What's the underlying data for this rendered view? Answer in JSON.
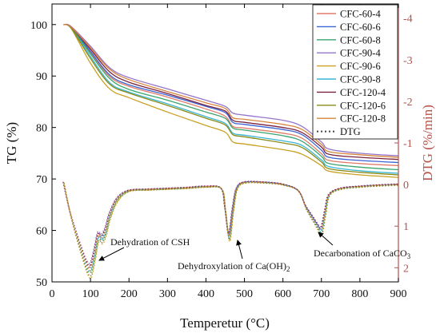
{
  "chart_data": {
    "type": "line",
    "xlabel": "Temperetur (°C)",
    "ylabel_left": "TG (%)",
    "ylabel_right": "DTG (%/min)",
    "xlim": [
      0,
      900
    ],
    "ylim_left": [
      50,
      104
    ],
    "ylim_right": [
      2.34,
      -4.34
    ],
    "right_axis_reversed": true,
    "x_ticks": [
      0,
      100,
      200,
      300,
      400,
      500,
      600,
      700,
      800,
      900
    ],
    "y_left_ticks": [
      50,
      60,
      70,
      80,
      90,
      100
    ],
    "y_right_ticks": [
      2,
      1,
      0,
      -1,
      -2,
      -3,
      -4
    ],
    "right_axis_color": "#b5524a",
    "grid": false,
    "legend_position": "top-right",
    "series": [
      {
        "name": "CFC-60-4",
        "color": "#e07b6a",
        "axis": "left",
        "x": [
          30,
          50,
          100,
          150,
          200,
          300,
          400,
          450,
          470,
          500,
          600,
          650,
          700,
          720,
          800,
          900
        ],
        "y": [
          100,
          99.5,
          94.6,
          89.9,
          88.0,
          85.9,
          83.6,
          82.2,
          80.2,
          79.9,
          78.9,
          77.9,
          74.9,
          73.6,
          73.0,
          72.6
        ]
      },
      {
        "name": "CFC-60-6",
        "color": "#3b63d6",
        "axis": "left",
        "x": [
          30,
          50,
          100,
          150,
          200,
          300,
          400,
          450,
          470,
          500,
          600,
          650,
          700,
          720,
          800,
          900
        ],
        "y": [
          100,
          99.5,
          94.8,
          90.2,
          88.3,
          86.3,
          84.1,
          82.9,
          81.0,
          80.6,
          79.6,
          78.6,
          75.6,
          74.2,
          73.6,
          73.2
        ]
      },
      {
        "name": "CFC-60-8",
        "color": "#3aa56e",
        "axis": "left",
        "x": [
          30,
          50,
          100,
          150,
          200,
          300,
          400,
          450,
          470,
          500,
          600,
          650,
          700,
          720,
          800,
          900
        ],
        "y": [
          100,
          99.4,
          94.3,
          89.5,
          87.4,
          85.3,
          83.0,
          81.8,
          79.9,
          79.5,
          78.4,
          77.3,
          74.4,
          73.0,
          72.3,
          71.8
        ]
      },
      {
        "name": "CFC-90-4",
        "color": "#9474cc",
        "axis": "left",
        "x": [
          30,
          50,
          100,
          150,
          200,
          300,
          400,
          450,
          470,
          500,
          600,
          650,
          700,
          720,
          800,
          900
        ],
        "y": [
          100,
          99.6,
          95.8,
          91.6,
          89.7,
          87.5,
          85.3,
          84.1,
          82.8,
          82.4,
          81.4,
          80.2,
          77.2,
          75.8,
          75.0,
          74.5
        ]
      },
      {
        "name": "CFC-90-6",
        "color": "#c9a020",
        "axis": "left",
        "x": [
          30,
          50,
          100,
          150,
          200,
          300,
          400,
          450,
          470,
          500,
          600,
          650,
          700,
          720,
          800,
          900
        ],
        "y": [
          100,
          99.2,
          92.5,
          87.5,
          85.8,
          83.0,
          80.4,
          79.1,
          77.2,
          76.8,
          75.7,
          74.8,
          72.6,
          71.5,
          70.8,
          70.3
        ]
      },
      {
        "name": "CFC-90-8",
        "color": "#3bb6d6",
        "axis": "left",
        "x": [
          30,
          50,
          100,
          150,
          200,
          300,
          400,
          450,
          470,
          500,
          600,
          650,
          700,
          720,
          800,
          900
        ],
        "y": [
          100,
          99.3,
          93.8,
          88.7,
          86.9,
          84.6,
          82.1,
          80.8,
          78.9,
          78.5,
          77.4,
          76.5,
          73.7,
          72.4,
          71.6,
          71.1
        ]
      },
      {
        "name": "CFC-120-4",
        "color": "#7a2240",
        "axis": "left",
        "x": [
          30,
          50,
          100,
          150,
          200,
          300,
          400,
          450,
          470,
          500,
          600,
          650,
          700,
          720,
          800,
          900
        ],
        "y": [
          100,
          99.5,
          95.2,
          90.8,
          88.8,
          86.6,
          84.3,
          83.2,
          81.4,
          81.0,
          80.0,
          79.0,
          76.2,
          74.8,
          74.2,
          73.8
        ]
      },
      {
        "name": "CFC-120-6",
        "color": "#8a8a18",
        "axis": "left",
        "x": [
          30,
          50,
          100,
          150,
          200,
          300,
          400,
          450,
          470,
          500,
          600,
          650,
          700,
          720,
          800,
          900
        ],
        "y": [
          100,
          99.3,
          93.4,
          88.4,
          86.7,
          84.3,
          81.8,
          80.5,
          78.6,
          78.2,
          77.0,
          76.1,
          73.3,
          72.0,
          71.3,
          70.8
        ]
      },
      {
        "name": "CFC-120-8",
        "color": "#d6853a",
        "axis": "left",
        "x": [
          30,
          50,
          100,
          150,
          200,
          300,
          400,
          450,
          470,
          500,
          600,
          650,
          700,
          720,
          800,
          900
        ],
        "y": [
          100,
          99.5,
          95.5,
          91.3,
          89.3,
          87.0,
          84.8,
          83.7,
          81.9,
          81.6,
          80.6,
          79.6,
          76.7,
          75.3,
          74.7,
          74.2
        ]
      }
    ],
    "dtg_series": {
      "name": "DTG",
      "style": "dotted",
      "axis": "right",
      "x": [
        30,
        45,
        60,
        75,
        90,
        100,
        110,
        120,
        130,
        140,
        150,
        170,
        200,
        250,
        300,
        350,
        400,
        440,
        450,
        460,
        470,
        480,
        500,
        550,
        600,
        640,
        660,
        680,
        690,
        700,
        710,
        720,
        750,
        800,
        850,
        900
      ],
      "y": [
        -0.05,
        0.6,
        1.1,
        1.55,
        1.95,
        2.05,
        1.7,
        1.25,
        1.3,
        1.1,
        0.75,
        0.35,
        0.15,
        0.12,
        0.1,
        0.08,
        0.05,
        0.1,
        0.6,
        1.25,
        0.6,
        0.1,
        -0.05,
        -0.05,
        0.0,
        0.15,
        0.55,
        0.85,
        1.0,
        1.1,
        0.65,
        0.25,
        0.1,
        0.05,
        0.02,
        0.0
      ],
      "curve_colors": [
        "#e07b6a",
        "#3b63d6",
        "#3aa56e",
        "#9474cc",
        "#c9a020",
        "#3bb6d6",
        "#7a2240",
        "#8a8a18",
        "#d6853a"
      ],
      "curve_offsets": [
        0.0,
        -0.07,
        0.05,
        -0.15,
        0.17,
        0.03,
        -0.1,
        0.12,
        -0.04
      ]
    },
    "annotations": [
      {
        "text": "Dehydration of CSH",
        "x": 125,
        "y_left": 57.6
      },
      {
        "text": "Dehydroxylation of Ca(OH)",
        "subscript": "2",
        "x": 300,
        "y_left": 54.0
      },
      {
        "text": "Decarbonation of CaCO",
        "subscript": "3",
        "x": 610,
        "y_left": 56.2
      }
    ]
  }
}
